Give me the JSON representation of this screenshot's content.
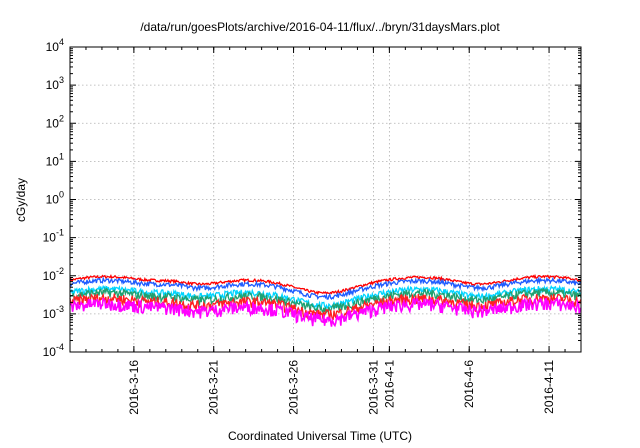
{
  "chart_data": {
    "type": "line",
    "title": "/data/run/goesPlots/archive/2016-04-11/flux/../bryn/31daysMars.plot",
    "xlabel": "Coordinated Universal Time (UTC)",
    "ylabel": "cGy/day",
    "yscale": "log",
    "ylim": [
      0.0001,
      10000
    ],
    "xlim": [
      "2016-03-12",
      "2016-04-13"
    ],
    "y_ticks": [
      {
        "base": "10",
        "exp": "-4"
      },
      {
        "base": "10",
        "exp": "-3"
      },
      {
        "base": "10",
        "exp": "-2"
      },
      {
        "base": "10",
        "exp": "-1"
      },
      {
        "base": "10",
        "exp": "0"
      },
      {
        "base": "10",
        "exp": "1"
      },
      {
        "base": "10",
        "exp": "2"
      },
      {
        "base": "10",
        "exp": "3"
      },
      {
        "base": "10",
        "exp": "4"
      }
    ],
    "x_ticks": [
      "2016-3-16",
      "2016-3-21",
      "2016-3-26",
      "2016-3-31",
      "2016-4-1",
      "2016-4-6",
      "2016-4-11"
    ],
    "grid": true,
    "series": [
      {
        "color": "#ff0000",
        "level": 0.0065
      },
      {
        "color": "#1e5cff",
        "level": 0.0052
      },
      {
        "color": "#00d5ff",
        "level": 0.0031
      },
      {
        "color": "#20a070",
        "level": 0.0025
      },
      {
        "color": "#ff2020",
        "level": 0.0018
      },
      {
        "color": "#ff00ff",
        "level": 0.0013
      }
    ]
  }
}
